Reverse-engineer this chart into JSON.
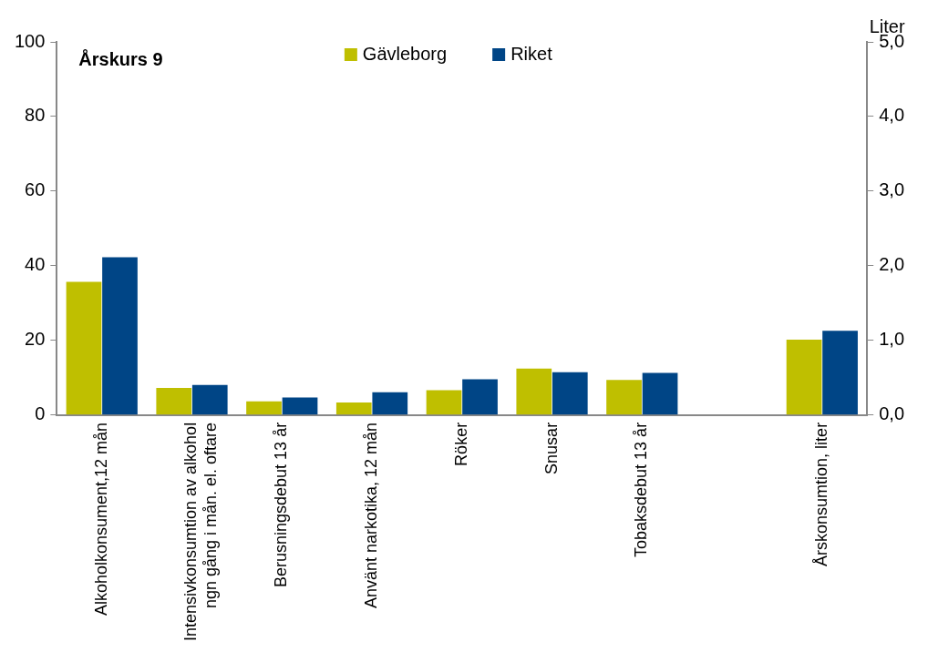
{
  "chart_data": {
    "type": "bar",
    "title": "Årskurs 9",
    "y2label": "Liter",
    "categories": [
      "Alkoholkonsument,12 mån",
      "Intensivkonsumtion av alkohol\nngn gång i mån. el. oftare",
      "Berusningsdebut 13 år",
      "Använt narkotika, 12 mån",
      "Röker",
      "Snusar",
      "Tobaksdebut 13 år",
      null,
      "Årskonsumtion, liter"
    ],
    "series": [
      {
        "name": "Gävleborg",
        "color": "#bfbf00",
        "values": [
          35.7,
          7.3,
          3.7,
          3.4,
          6.7,
          12.5,
          9.4,
          null,
          null
        ]
      },
      {
        "name": "Riket",
        "color": "#004586",
        "values": [
          42.3,
          8.1,
          4.7,
          6.1,
          9.6,
          11.5,
          11.3,
          null,
          null
        ]
      },
      {
        "color": "#bfbf00",
        "axis": "y2",
        "values": [
          null,
          null,
          null,
          null,
          null,
          null,
          null,
          null,
          1.01
        ]
      },
      {
        "color": "#004586",
        "axis": "y2",
        "values": [
          null,
          null,
          null,
          null,
          null,
          null,
          null,
          null,
          1.13
        ]
      }
    ],
    "ylim": [
      0,
      100
    ],
    "yticks": [
      0,
      20,
      40,
      60,
      80,
      100
    ],
    "y2lim": [
      0,
      5
    ],
    "y2ticks": [
      {
        "value": 0,
        "label": "0,0"
      },
      {
        "value": 1,
        "label": "1,0"
      },
      {
        "value": 2,
        "label": "2,0"
      },
      {
        "value": 3,
        "label": "3,0"
      },
      {
        "value": 4,
        "label": "4,0"
      },
      {
        "value": 5,
        "label": "5,0"
      }
    ],
    "grid": false,
    "legend": "top"
  }
}
